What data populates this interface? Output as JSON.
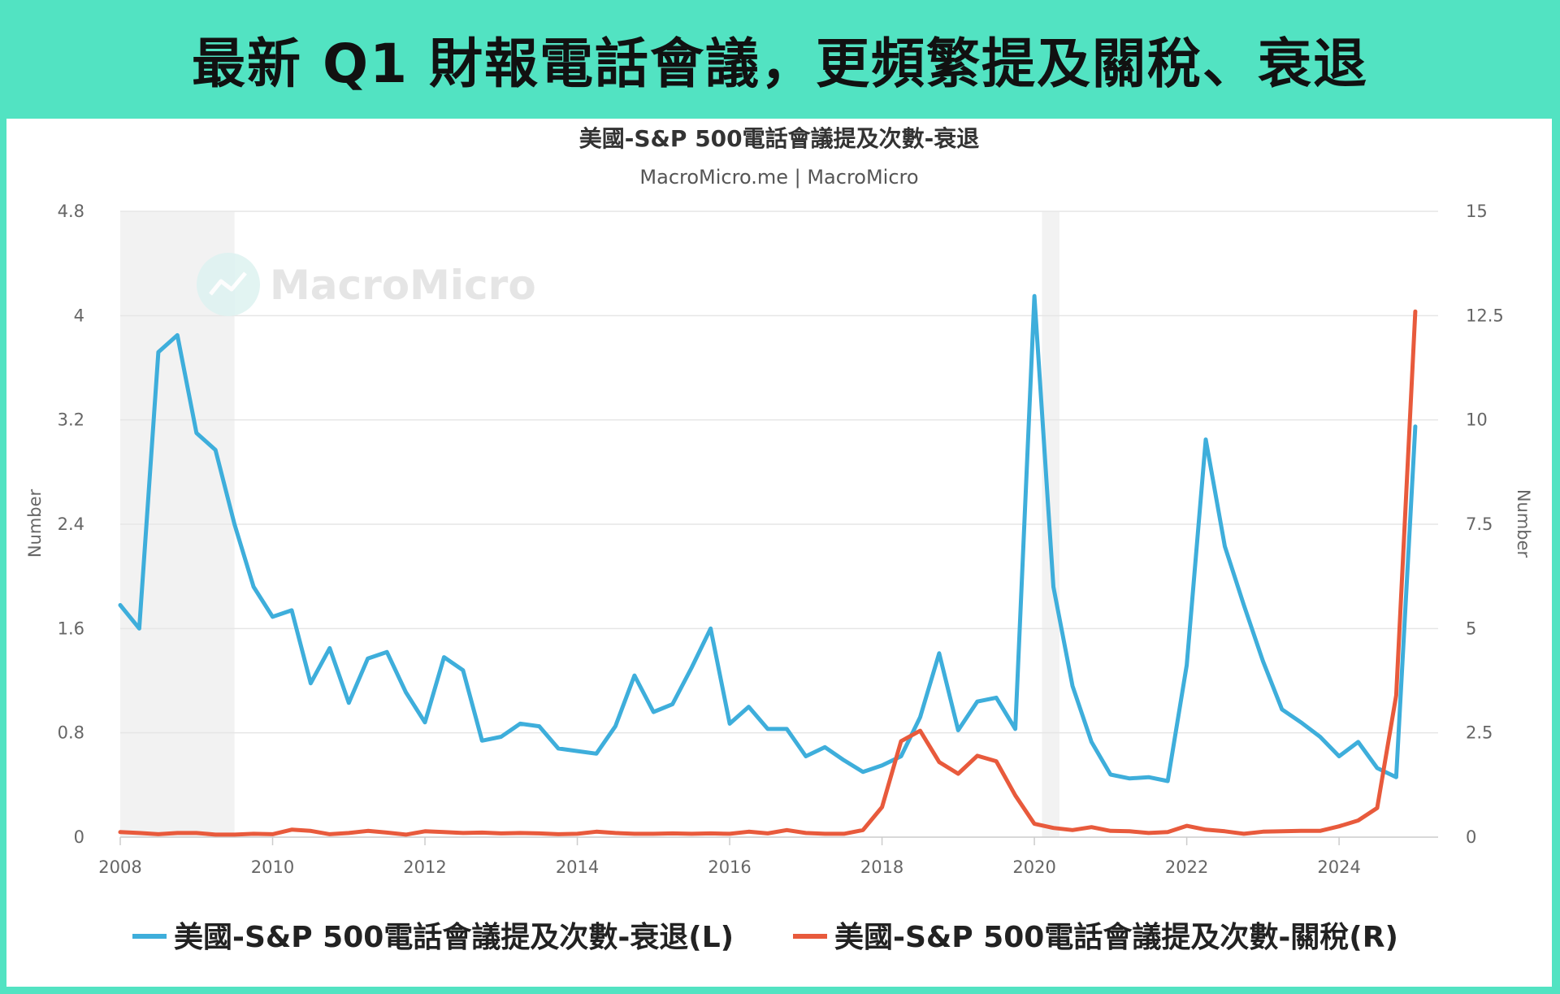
{
  "header": {
    "title": "最新 Q1 財報電話會議，更頻繁提及關稅、衰退"
  },
  "watermark": {
    "text": "MacroMicro",
    "icon": "chart-line-icon"
  },
  "chart_data": {
    "type": "line",
    "title": "美國-S&P 500電話會議提及次數-衰退",
    "subtitle": "MacroMicro.me | MacroMicro",
    "ylabel_left": "Number",
    "ylabel_right": "Number",
    "ylim_left": [
      0,
      4.8
    ],
    "ylim_right": [
      0,
      15
    ],
    "yticks_left": [
      "0",
      "0.8",
      "1.6",
      "2.4",
      "3.2",
      "4",
      "4.8"
    ],
    "yticks_right": [
      "0",
      "2.5",
      "5",
      "7.5",
      "10",
      "12.5",
      "15"
    ],
    "xlim": [
      2008,
      2025.3
    ],
    "xticks": [
      "2008",
      "2010",
      "2012",
      "2014",
      "2016",
      "2018",
      "2020",
      "2022",
      "2024"
    ],
    "grid": true,
    "legend_position": "bottom",
    "recession_shading": [
      [
        2008.0,
        2009.5
      ],
      [
        2020.1,
        2020.33
      ]
    ],
    "series": [
      {
        "name": "美國-S&P 500電話會議提及次數-衰退(L)",
        "axis": "left",
        "color": "#3eaedb",
        "x": [
          2008.0,
          2008.25,
          2008.5,
          2008.75,
          2009.0,
          2009.25,
          2009.5,
          2009.75,
          2010.0,
          2010.25,
          2010.5,
          2010.75,
          2011.0,
          2011.25,
          2011.5,
          2011.75,
          2012.0,
          2012.25,
          2012.5,
          2012.75,
          2013.0,
          2013.25,
          2013.5,
          2013.75,
          2014.0,
          2014.25,
          2014.5,
          2014.75,
          2015.0,
          2015.25,
          2015.5,
          2015.75,
          2016.0,
          2016.25,
          2016.5,
          2016.75,
          2017.0,
          2017.25,
          2017.5,
          2017.75,
          2018.0,
          2018.25,
          2018.5,
          2018.75,
          2019.0,
          2019.25,
          2019.5,
          2019.75,
          2020.0,
          2020.25,
          2020.5,
          2020.75,
          2021.0,
          2021.25,
          2021.5,
          2021.75,
          2022.0,
          2022.25,
          2022.5,
          2022.75,
          2023.0,
          2023.25,
          2023.5,
          2023.75,
          2024.0,
          2024.25,
          2024.5,
          2024.75,
          2025.0
        ],
        "values": [
          1.78,
          1.6,
          3.72,
          3.85,
          3.1,
          2.97,
          2.4,
          1.92,
          1.69,
          1.74,
          1.18,
          1.45,
          1.03,
          1.37,
          1.42,
          1.11,
          0.88,
          1.38,
          1.28,
          0.74,
          0.77,
          0.87,
          0.85,
          0.68,
          0.66,
          0.64,
          0.85,
          1.24,
          0.96,
          1.02,
          1.3,
          1.6,
          0.87,
          1.0,
          0.83,
          0.83,
          0.62,
          0.69,
          0.59,
          0.5,
          0.55,
          0.62,
          0.92,
          1.41,
          0.82,
          1.04,
          1.07,
          0.83,
          4.15,
          1.92,
          1.16,
          0.73,
          0.48,
          0.45,
          0.46,
          0.43,
          1.32,
          3.05,
          2.23,
          1.78,
          1.35,
          0.98,
          0.88,
          0.77,
          0.62,
          0.73,
          0.53,
          0.46,
          3.15
        ]
      },
      {
        "name": "美國-S&P 500電話會議提及次數-關稅(R)",
        "axis": "right",
        "color": "#e85a3c",
        "x": [
          2008.0,
          2008.25,
          2008.5,
          2008.75,
          2009.0,
          2009.25,
          2009.5,
          2009.75,
          2010.0,
          2010.25,
          2010.5,
          2010.75,
          2011.0,
          2011.25,
          2011.5,
          2011.75,
          2012.0,
          2012.25,
          2012.5,
          2012.75,
          2013.0,
          2013.25,
          2013.5,
          2013.75,
          2014.0,
          2014.25,
          2014.5,
          2014.75,
          2015.0,
          2015.25,
          2015.5,
          2015.75,
          2016.0,
          2016.25,
          2016.5,
          2016.75,
          2017.0,
          2017.25,
          2017.5,
          2017.75,
          2018.0,
          2018.25,
          2018.5,
          2018.75,
          2019.0,
          2019.25,
          2019.5,
          2019.75,
          2020.0,
          2020.25,
          2020.5,
          2020.75,
          2021.0,
          2021.25,
          2021.5,
          2021.75,
          2022.0,
          2022.25,
          2022.5,
          2022.75,
          2023.0,
          2023.25,
          2023.5,
          2023.75,
          2024.0,
          2024.25,
          2024.5,
          2024.75,
          2025.0
        ],
        "values": [
          0.12,
          0.1,
          0.07,
          0.1,
          0.1,
          0.06,
          0.06,
          0.08,
          0.07,
          0.18,
          0.15,
          0.07,
          0.1,
          0.15,
          0.11,
          0.06,
          0.14,
          0.12,
          0.1,
          0.11,
          0.09,
          0.1,
          0.09,
          0.07,
          0.08,
          0.13,
          0.1,
          0.08,
          0.08,
          0.09,
          0.08,
          0.09,
          0.08,
          0.13,
          0.09,
          0.17,
          0.1,
          0.08,
          0.08,
          0.17,
          0.72,
          2.3,
          2.55,
          1.8,
          1.52,
          1.95,
          1.82,
          1.0,
          0.32,
          0.22,
          0.17,
          0.24,
          0.15,
          0.14,
          0.1,
          0.12,
          0.27,
          0.18,
          0.14,
          0.08,
          0.13,
          0.14,
          0.15,
          0.15,
          0.26,
          0.4,
          0.7,
          3.4,
          12.6
        ]
      }
    ]
  }
}
